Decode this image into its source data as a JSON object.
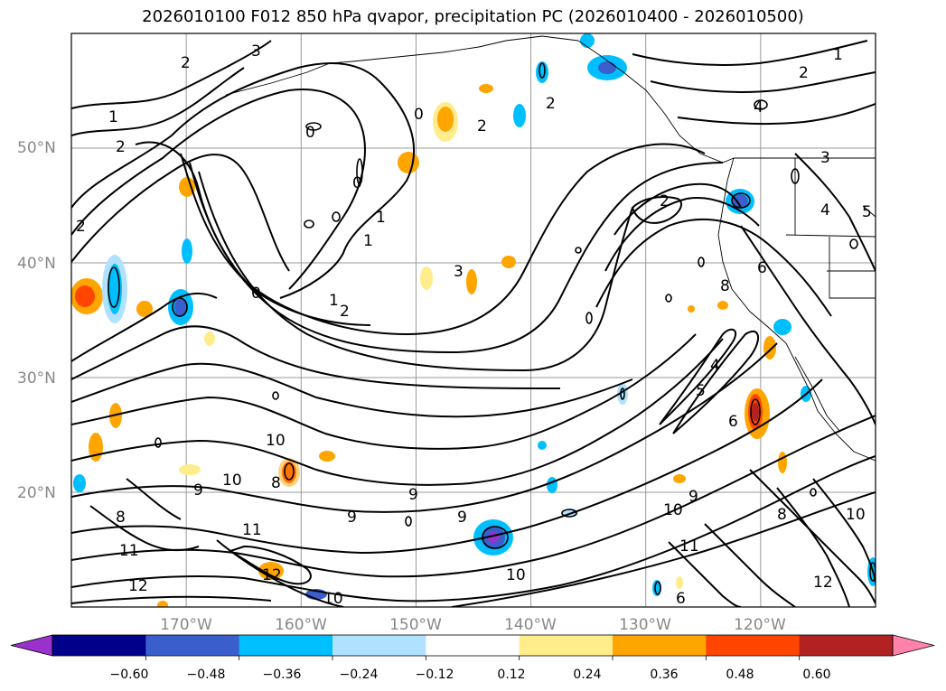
{
  "title": "2026010100 F012 850 hPa qvapor, precipitation PC (2026010400 - 2026010500)",
  "map": {
    "lon_range": [
      -180,
      -110
    ],
    "lat_range": [
      10,
      60
    ],
    "lat_labels": [
      "50°N",
      "40°N",
      "30°N",
      "20°N"
    ],
    "lon_labels": [
      "170°W",
      "160°W",
      "150°W",
      "140°W",
      "130°W",
      "120°W"
    ],
    "contour_labels": [
      "2",
      "3",
      "2",
      "1",
      "2",
      "0",
      "0",
      "0",
      "1",
      "1",
      "0",
      "2",
      "3",
      "2",
      "2",
      "1",
      "2",
      "4",
      "4",
      "1",
      "2",
      "3",
      "5",
      "6",
      "8",
      "4",
      "5",
      "6",
      "8",
      "9",
      "10",
      "11",
      "12",
      "10",
      "9",
      "8",
      "10",
      "9",
      "11",
      "12",
      "10",
      "8",
      "9",
      "10",
      "11",
      "12",
      "9",
      "10",
      "6"
    ]
  },
  "colorbar": {
    "colors": [
      "#9932CC",
      "#00008B",
      "#3A5FCD",
      "#00BFFF",
      "#B0E2FF",
      "#FFFFFF",
      "#FFEC8B",
      "#FFA500",
      "#FF4500",
      "#B22222",
      "#FF82AB"
    ],
    "tick_labels": [
      "−0.60",
      "−0.48",
      "−0.36",
      "−0.24",
      "−0.12",
      "0.12",
      "0.24",
      "0.36",
      "0.48",
      "0.60"
    ]
  }
}
